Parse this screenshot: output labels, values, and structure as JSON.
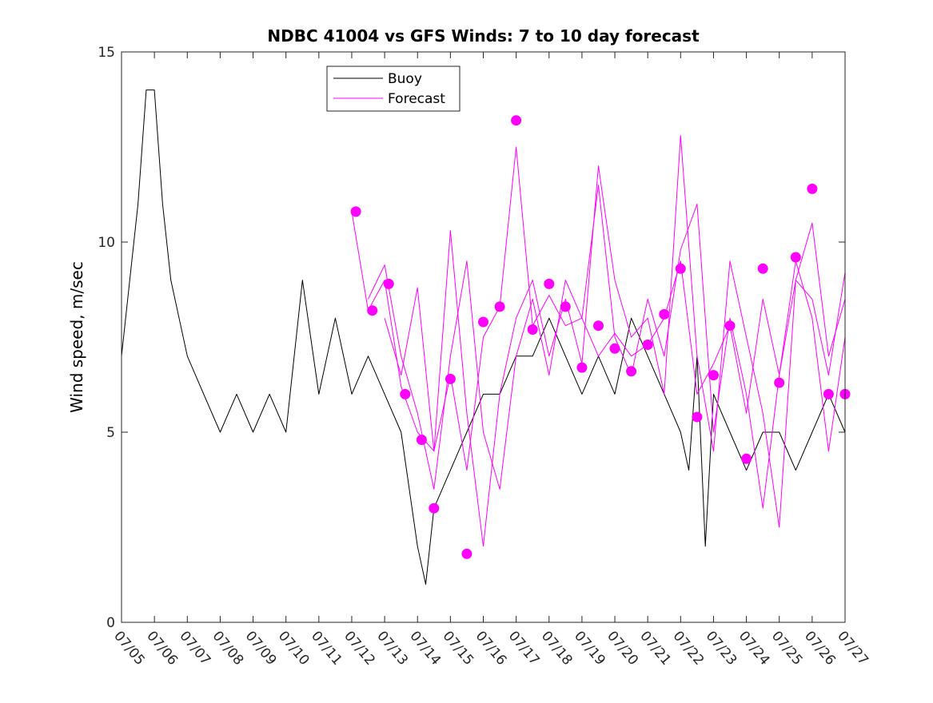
{
  "chart_data": {
    "type": "line",
    "title": "NDBC 41004 vs GFS Winds: 7 to 10 day forecast",
    "xlabel": "",
    "ylabel": "Wind speed, m/sec",
    "ylim": [
      0,
      15
    ],
    "xlim": [
      "07/05",
      "07/27"
    ],
    "x_tick_labels": [
      "07/05",
      "07/06",
      "07/07",
      "07/08",
      "07/09",
      "07/10",
      "07/11",
      "07/12",
      "07/13",
      "07/14",
      "07/15",
      "07/16",
      "07/17",
      "07/18",
      "07/19",
      "07/20",
      "07/21",
      "07/22",
      "07/23",
      "07/24",
      "07/25",
      "07/26",
      "07/27"
    ],
    "y_tick_labels": [
      "0",
      "5",
      "10",
      "15"
    ],
    "y_ticks": [
      0,
      5,
      10,
      15
    ],
    "grid": false,
    "legend": {
      "position": "top-center",
      "entries": [
        "Buoy",
        "Forecast"
      ]
    },
    "colors": {
      "buoy": "#000000",
      "forecast": "#ff00ff"
    },
    "series": [
      {
        "name": "Buoy",
        "x": [
          "07/05 00:00",
          "07/05 06:00",
          "07/05 12:00",
          "07/05 18:00",
          "07/06 00:00",
          "07/06 06:00",
          "07/06 12:00",
          "07/06 18:00",
          "07/07 00:00",
          "07/07 12:00",
          "07/08 00:00",
          "07/08 12:00",
          "07/09 00:00",
          "07/09 12:00",
          "07/10 00:00",
          "07/10 12:00",
          "07/11 00:00",
          "07/11 12:00",
          "07/12 00:00",
          "07/12 12:00",
          "07/13 00:00",
          "07/13 12:00",
          "07/14 00:00",
          "07/14 06:00",
          "07/14 12:00",
          "07/15 00:00",
          "07/15 12:00",
          "07/16 00:00",
          "07/16 12:00",
          "07/17 00:00",
          "07/17 12:00",
          "07/18 00:00",
          "07/18 12:00",
          "07/19 00:00",
          "07/19 12:00",
          "07/20 00:00",
          "07/20 12:00",
          "07/21 00:00",
          "07/21 12:00",
          "07/22 00:00",
          "07/22 06:00",
          "07/22 12:00",
          "07/22 18:00",
          "07/23 00:00",
          "07/23 12:00",
          "07/24 00:00",
          "07/24 12:00",
          "07/25 00:00",
          "07/25 12:00",
          "07/26 00:00",
          "07/26 12:00",
          "07/27 00:00"
        ],
        "y": [
          7,
          9,
          11,
          14,
          14,
          11,
          9,
          8,
          7,
          6,
          5,
          6,
          5,
          6,
          5,
          9,
          6,
          8,
          6,
          7,
          6,
          5,
          2,
          1,
          3,
          4,
          5,
          6,
          6,
          7,
          7,
          8,
          7,
          6,
          7,
          6,
          8,
          7,
          6,
          5,
          4,
          7,
          2,
          6,
          5,
          4,
          5,
          5,
          4,
          5,
          6,
          5
        ]
      },
      {
        "name": "Forecast",
        "x": [
          "07/12 00:00",
          "07/12 12:00",
          "07/13 00:00",
          "07/13 12:00",
          "07/14 00:00",
          "07/14 12:00",
          "07/15 00:00",
          "07/15 12:00",
          "07/16 00:00",
          "07/16 12:00",
          "07/17 00:00",
          "07/17 12:00",
          "07/18 00:00",
          "07/18 12:00",
          "07/19 00:00",
          "07/19 12:00",
          "07/20 00:00",
          "07/20 12:00",
          "07/21 00:00",
          "07/21 12:00",
          "07/22 00:00",
          "07/22 12:00",
          "07/23 00:00",
          "07/23 12:00",
          "07/24 00:00",
          "07/24 12:00",
          "07/25 00:00",
          "07/25 12:00",
          "07/26 00:00",
          "07/26 12:00",
          "07/27 00:00"
        ],
        "y": [
          10.8,
          8.2,
          9.0,
          6.2,
          5.0,
          4.5,
          6.5,
          4.0,
          7.5,
          8.3,
          12.5,
          7.8,
          8.6,
          7.8,
          8.0,
          7.0,
          7.6,
          7.0,
          7.3,
          8.0,
          9.5,
          6.0,
          6.8,
          7.8,
          5.5,
          8.5,
          6.5,
          9.0,
          10.5,
          7.0,
          8.5
        ]
      },
      {
        "name": "",
        "x": [
          "07/12 12:00",
          "07/13 00:00",
          "07/13 12:00",
          "07/14 00:00",
          "07/14 12:00",
          "07/15 00:00",
          "07/15 12:00",
          "07/16 00:00",
          "07/16 12:00",
          "07/17 00:00",
          "07/17 12:00",
          "07/18 00:00",
          "07/18 12:00",
          "07/19 00:00",
          "07/19 12:00",
          "07/20 00:00",
          "07/20 12:00",
          "07/21 00:00",
          "07/21 12:00",
          "07/22 00:00",
          "07/22 12:00",
          "07/23 00:00",
          "07/23 12:00",
          "07/24 00:00",
          "07/24 12:00",
          "07/25 00:00",
          "07/25 12:00",
          "07/26 00:00",
          "07/26 12:00",
          "07/27 00:00"
        ],
        "y": [
          8.5,
          9.4,
          7.0,
          5.5,
          3.5,
          7.0,
          9.5,
          5.0,
          3.5,
          7.0,
          8.5,
          6.5,
          9.0,
          8.0,
          11.5,
          7.5,
          6.5,
          8.5,
          7.0,
          9.8,
          11.0,
          5.0,
          8.0,
          6.0,
          3.0,
          6.5,
          9.5,
          8.0,
          4.5,
          7.5
        ]
      },
      {
        "name": "",
        "x": [
          "07/13 00:00",
          "07/13 12:00",
          "07/14 00:00",
          "07/14 12:00",
          "07/15 00:00",
          "07/15 12:00",
          "07/16 00:00",
          "07/16 12:00",
          "07/17 00:00",
          "07/17 12:00",
          "07/18 00:00",
          "07/18 12:00",
          "07/19 00:00",
          "07/19 12:00",
          "07/20 00:00",
          "07/20 12:00",
          "07/21 00:00",
          "07/21 12:00",
          "07/22 00:00",
          "07/22 12:00",
          "07/23 00:00",
          "07/23 12:00",
          "07/24 00:00",
          "07/24 12:00",
          "07/25 00:00",
          "07/25 12:00",
          "07/26 00:00",
          "07/26 12:00",
          "07/27 00:00"
        ],
        "y": [
          8.0,
          6.5,
          8.8,
          4.5,
          10.3,
          5.5,
          2.0,
          6.0,
          8.0,
          9.0,
          7.0,
          8.5,
          6.8,
          12.0,
          9.0,
          7.5,
          8.0,
          6.0,
          12.8,
          7.0,
          4.5,
          9.5,
          7.5,
          5.5,
          2.5,
          9.0,
          8.5,
          6.5,
          9.2
        ]
      }
    ],
    "markers": {
      "name": "Forecast",
      "x": [
        "07/12 03:00",
        "07/12 15:00",
        "07/13 03:00",
        "07/13 15:00",
        "07/14 03:00",
        "07/14 12:00",
        "07/15 00:00",
        "07/15 12:00",
        "07/16 00:00",
        "07/16 12:00",
        "07/17 00:00",
        "07/17 12:00",
        "07/18 00:00",
        "07/18 12:00",
        "07/19 00:00",
        "07/19 12:00",
        "07/20 00:00",
        "07/20 12:00",
        "07/21 00:00",
        "07/21 12:00",
        "07/22 00:00",
        "07/22 12:00",
        "07/23 00:00",
        "07/23 12:00",
        "07/24 00:00",
        "07/24 12:00",
        "07/25 00:00",
        "07/25 12:00",
        "07/26 00:00",
        "07/26 12:00",
        "07/27 00:00"
      ],
      "y": [
        10.8,
        8.2,
        8.9,
        6.0,
        4.8,
        3.0,
        6.4,
        1.8,
        7.9,
        8.3,
        13.2,
        7.7,
        8.9,
        8.3,
        6.7,
        7.8,
        7.2,
        6.6,
        7.3,
        8.1,
        9.3,
        5.4,
        6.5,
        7.8,
        4.3,
        9.3,
        6.3,
        9.6,
        11.4,
        6.0,
        6.0
      ]
    }
  }
}
